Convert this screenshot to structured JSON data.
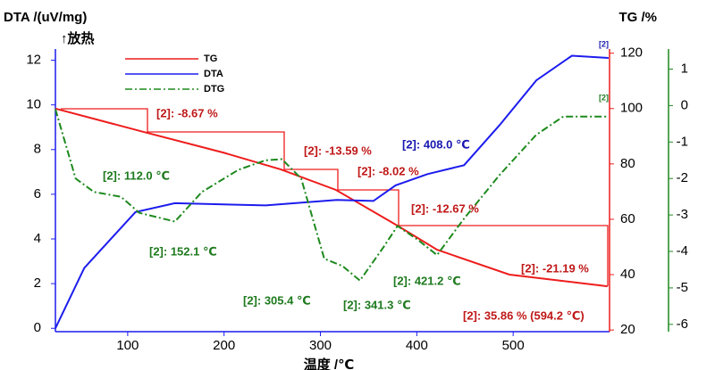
{
  "chart_data": {
    "type": "line",
    "y_label": "DTA /(uV/mg)",
    "y_sublabel": "↑放热",
    "y2_label": "TG /%",
    "x_label": "温度 /℃",
    "xlim": [
      25,
      600
    ],
    "xticks": [
      100,
      200,
      300,
      400,
      500
    ],
    "ylim": [
      -0.15,
      12.5
    ],
    "yticks": [
      0,
      2,
      4,
      6,
      8,
      10,
      12
    ],
    "y2lim": [
      19.4,
      121.5
    ],
    "y2ticks": [
      20,
      40,
      60,
      80,
      100,
      120
    ],
    "y3lim": [
      -6.2,
      1.55
    ],
    "y3ticks": [
      -6,
      -5,
      -4,
      -3,
      -2,
      -1,
      0,
      1
    ],
    "legend": "upper left",
    "series": [
      {
        "name": "TG",
        "color": "#ee1c1c",
        "axis": "y2",
        "dash": "solid",
        "x": [
          25,
          116,
          200,
          259,
          316,
          380,
          421,
          496,
          598
        ],
        "values": [
          100,
          91.6,
          84,
          78,
          70.6,
          57.7,
          49,
          40,
          35.8
        ]
      },
      {
        "name": "DTA",
        "color": "#1c1cee",
        "axis": "y",
        "dash": "solid",
        "x": [
          25,
          55,
          108,
          149,
          243,
          317,
          355,
          378,
          411,
          449,
          486,
          524,
          561,
          599
        ],
        "values": [
          0,
          2.7,
          5.2,
          5.6,
          5.5,
          5.75,
          5.7,
          6.4,
          6.9,
          7.3,
          9.1,
          11.1,
          12.2,
          12.1
        ]
      },
      {
        "name": "DTG",
        "color": "#1e8a1e",
        "axis": "y3",
        "dash": "dashdot",
        "x": [
          25,
          46,
          65,
          93,
          112,
          149,
          177,
          215,
          243,
          260,
          280,
          304,
          323,
          341,
          365,
          380,
          402,
          421,
          449,
          486,
          524,
          552,
          597
        ],
        "values": [
          -0.1,
          -2.0,
          -2.37,
          -2.5,
          -2.94,
          -3.18,
          -2.37,
          -1.76,
          -1.5,
          -1.47,
          -2.0,
          -4.2,
          -4.4,
          -4.8,
          -3.9,
          -3.3,
          -3.7,
          -4.1,
          -3.1,
          -1.9,
          -0.8,
          -0.3,
          -0.3
        ]
      }
    ],
    "annotations": [
      {
        "text": "[2]: -8.67 %",
        "color": "#c01818"
      },
      {
        "text": "[2]: -13.59 %",
        "color": "#c01818"
      },
      {
        "text": "[2]: -8.02 %",
        "color": "#c01818"
      },
      {
        "text": "[2]: -12.67 %",
        "color": "#c01818"
      },
      {
        "text": "[2]: -21.19 %",
        "color": "#c01818"
      },
      {
        "text": "[2]: 35.86 % (594.2 ℃)",
        "color": "#c01818"
      },
      {
        "text": "[2]: 112.0 ℃",
        "color": "#1e7a1e"
      },
      {
        "text": "[2]: 152.1 ℃",
        "color": "#1e7a1e"
      },
      {
        "text": "[2]: 305.4 ℃",
        "color": "#1e7a1e"
      },
      {
        "text": "[2]: 341.3 ℃",
        "color": "#1e7a1e"
      },
      {
        "text": "[2]: 421.2 ℃",
        "color": "#1e7a1e"
      },
      {
        "text": "[2]: 408.0 ℃",
        "color": "#1818b0"
      },
      {
        "text": "[2]",
        "color": "#1818b0"
      },
      {
        "text": "[2]",
        "color": "#1e7a1e"
      }
    ]
  }
}
